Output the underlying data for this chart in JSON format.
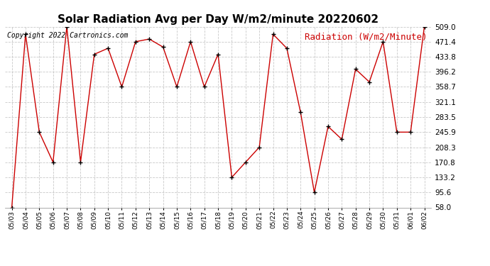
{
  "title": "Solar Radiation Avg per Day W/m2/minute 20220602",
  "copyright_text": "Copyright 2022 Cartronics.com",
  "legend_label": "Radiation (W/m2/Minute)",
  "dates": [
    "05/03",
    "05/04",
    "05/05",
    "05/06",
    "05/07",
    "05/08",
    "05/09",
    "05/10",
    "05/11",
    "05/12",
    "05/13",
    "05/14",
    "05/15",
    "05/16",
    "05/17",
    "05/18",
    "05/19",
    "05/20",
    "05/21",
    "05/22",
    "05/23",
    "05/24",
    "05/25",
    "05/26",
    "05/27",
    "05/28",
    "05/29",
    "05/30",
    "05/31",
    "06/01",
    "06/02"
  ],
  "values": [
    58.0,
    490.0,
    245.9,
    170.8,
    509.0,
    170.8,
    440.0,
    455.0,
    358.7,
    471.4,
    478.0,
    458.0,
    358.7,
    471.4,
    358.7,
    440.0,
    133.2,
    170.8,
    208.3,
    490.0,
    455.0,
    295.0,
    95.6,
    260.0,
    228.0,
    403.0,
    371.0,
    471.4,
    245.9,
    245.9,
    509.0
  ],
  "line_color": "#cc0000",
  "marker_color": "#000000",
  "grid_color": "#bbbbbb",
  "bg_color": "#ffffff",
  "plot_bg_color": "#ffffff",
  "title_fontsize": 11,
  "copyright_fontsize": 7,
  "legend_fontsize": 9,
  "yticks": [
    58.0,
    95.6,
    133.2,
    170.8,
    208.3,
    245.9,
    283.5,
    321.1,
    358.7,
    396.2,
    433.8,
    471.4,
    509.0
  ],
  "ymin": 58.0,
  "ymax": 509.0
}
